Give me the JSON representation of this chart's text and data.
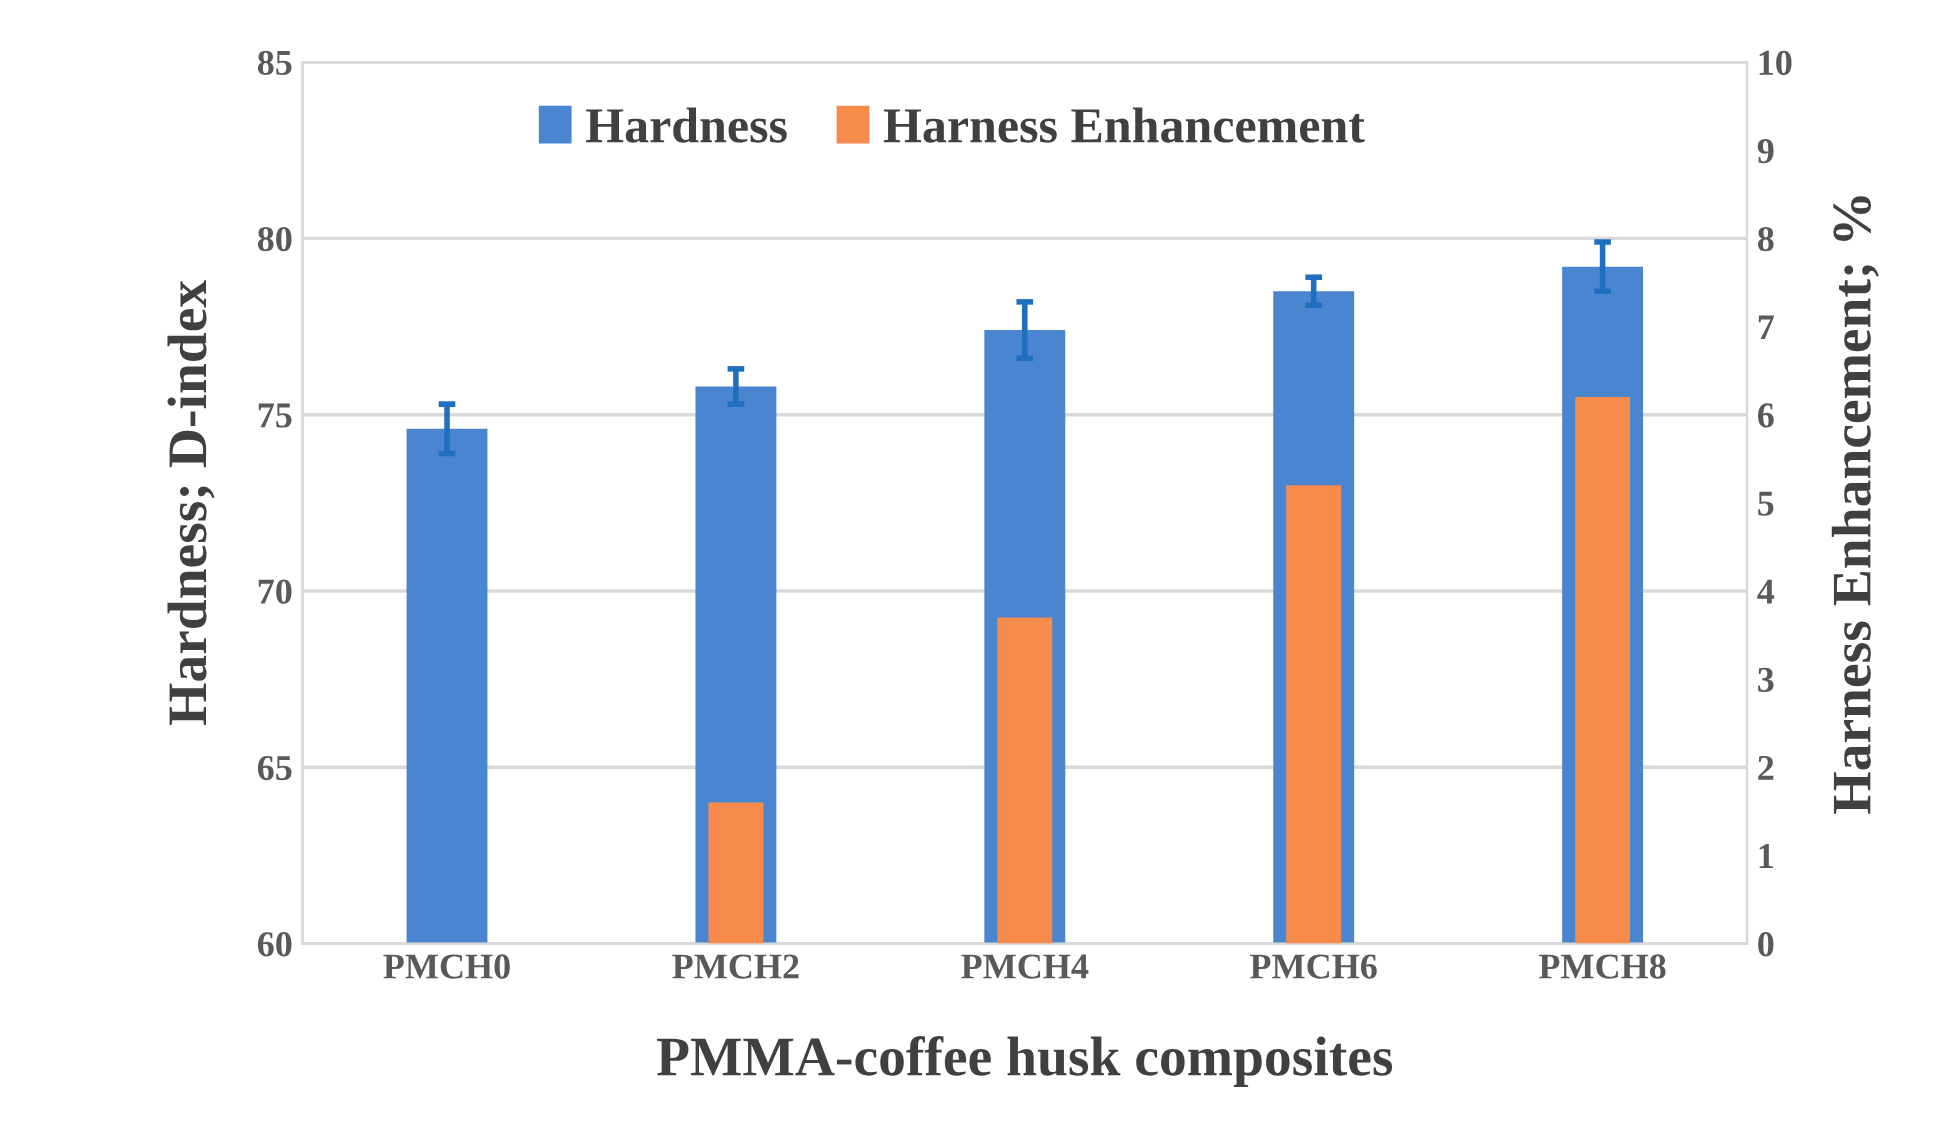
{
  "chart_data": {
    "type": "bar",
    "xlabel": "PMMA-coffee husk composites",
    "ylabel": "Hardness; D-index",
    "y2label": "Harness Enhancement; %",
    "categories": [
      "PMCH0",
      "PMCH2",
      "PMCH4",
      "PMCH6",
      "PMCH8"
    ],
    "series": [
      {
        "name": "Hardness",
        "color": "#4a86d0",
        "values": [
          74.6,
          75.8,
          77.4,
          78.5,
          79.2
        ],
        "errors": [
          0.7,
          0.5,
          0.8,
          0.4,
          0.7
        ]
      },
      {
        "name": "Harness Enhancement",
        "color": "#f68b4c",
        "values": [
          0,
          1.6,
          3.7,
          5.2,
          6.2
        ],
        "axis": "y2"
      }
    ],
    "ylim": [
      60,
      85
    ],
    "yticks": [
      60,
      65,
      70,
      75,
      80,
      85
    ],
    "y2lim": [
      0,
      10
    ],
    "y2ticks": [
      0,
      1,
      2,
      3,
      4,
      5,
      6,
      7,
      8,
      9,
      10
    ],
    "grid": "y",
    "legend": "top"
  }
}
